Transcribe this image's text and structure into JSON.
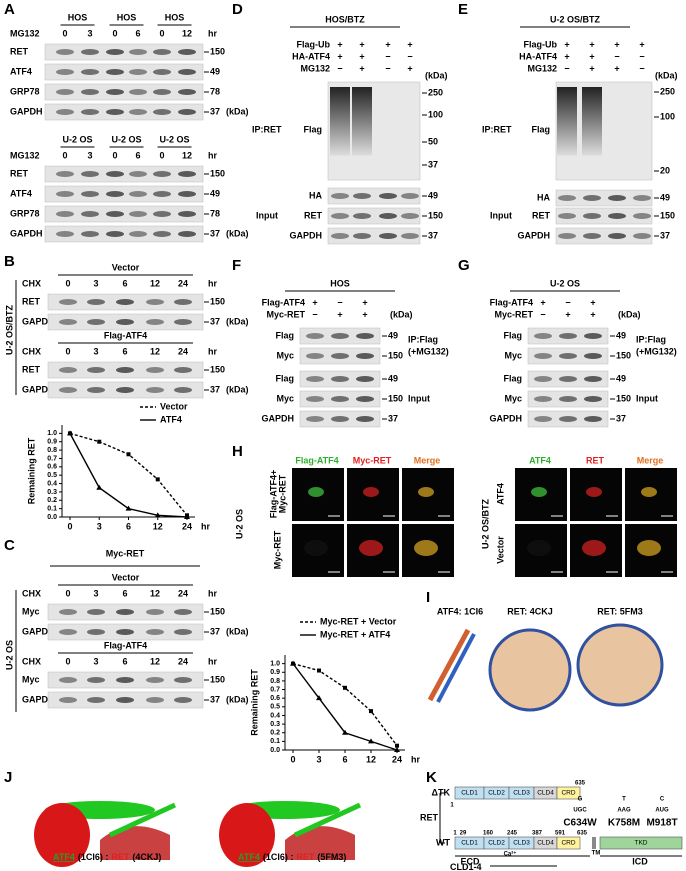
{
  "A": {
    "label": "A",
    "hos": {
      "cells": [
        "HOS",
        "HOS",
        "HOS"
      ],
      "treatment": "MG132",
      "times": [
        "0",
        "3",
        "0",
        "6",
        "0",
        "12"
      ],
      "unit": "hr",
      "rows": [
        "RET",
        "ATF4",
        "GRP78",
        "GAPDH"
      ],
      "markers": [
        "150",
        "49",
        "78",
        "37"
      ],
      "kda": "(kDa)"
    },
    "u2os": {
      "cells": [
        "U-2 OS",
        "U-2 OS",
        "U-2 OS"
      ],
      "treatment": "MG132",
      "times": [
        "0",
        "3",
        "0",
        "6",
        "0",
        "12"
      ],
      "unit": "hr",
      "rows": [
        "RET",
        "ATF4",
        "GRP78",
        "GAPDH"
      ],
      "markers": [
        "150",
        "49",
        "78",
        "37"
      ],
      "kda": "(kDa)"
    }
  },
  "B": {
    "label": "B",
    "side": "U-2 OS/BTZ",
    "blots": [
      {
        "title": "Vector",
        "treatment": "CHX",
        "times": [
          "0",
          "3",
          "6",
          "12",
          "24"
        ],
        "unit": "hr",
        "rows": [
          "RET",
          "GAPDH"
        ],
        "markers": [
          "150",
          "37"
        ],
        "kda": "(kDa)"
      },
      {
        "title": "Flag-ATF4",
        "treatment": "CHX",
        "times": [
          "0",
          "3",
          "6",
          "12",
          "24"
        ],
        "unit": "hr",
        "rows": [
          "RET",
          "GAPDH"
        ],
        "markers": [
          "150",
          "37"
        ],
        "kda": "(kDa)"
      }
    ],
    "chart": {
      "type": "line",
      "ylabel": "Remaining RET",
      "categories": [
        "0",
        "3",
        "6",
        "12",
        "24"
      ],
      "xunit": "hr",
      "ylim": [
        0,
        1.1
      ],
      "yticks": [
        {
          "value": 0,
          "label": "0.0"
        },
        0.1,
        0.2,
        0.3,
        0.4,
        0.5,
        0.6,
        0.7,
        0.8,
        0.9,
        {
          "value": 1,
          "label": "1.0"
        }
      ],
      "series": [
        {
          "name": "Vector",
          "color": "#000000",
          "dash": true,
          "values": [
            1.0,
            0.9,
            0.75,
            0.45,
            0.02
          ]
        },
        {
          "name": "ATF4",
          "color": "#000000",
          "dash": false,
          "values": [
            1.0,
            0.35,
            0.1,
            0.02,
            0.0
          ]
        }
      ]
    }
  },
  "C": {
    "label": "C",
    "side": "U-2 OS",
    "construct": "Myc-RET",
    "blots": [
      {
        "title": "Vector",
        "treatment": "CHX",
        "times": [
          "0",
          "3",
          "6",
          "12",
          "24"
        ],
        "unit": "hr",
        "rows": [
          "Myc",
          "GAPDH"
        ],
        "markers": [
          "150",
          "37"
        ],
        "kda": "(kDa)"
      },
      {
        "title": "Flag-ATF4",
        "treatment": "CHX",
        "times": [
          "0",
          "3",
          "6",
          "12",
          "24"
        ],
        "unit": "hr",
        "rows": [
          "Myc",
          "GAPDH"
        ],
        "markers": [
          "150",
          "37"
        ],
        "kda": "(kDa)"
      }
    ],
    "chart": {
      "type": "line",
      "ylabel": "Remaining RET",
      "categories": [
        "0",
        "3",
        "6",
        "12",
        "24"
      ],
      "xunit": "hr",
      "ylim": [
        0,
        1.1
      ],
      "yticks": [
        {
          "value": 0,
          "label": "0.0"
        },
        0.1,
        0.2,
        0.3,
        0.4,
        0.5,
        0.6,
        0.7,
        0.8,
        0.9,
        {
          "value": 1,
          "label": "1.0"
        }
      ],
      "series": [
        {
          "name": "Myc-RET + Vector",
          "color": "#000000",
          "dash": true,
          "values": [
            1.0,
            0.92,
            0.72,
            0.45,
            0.05
          ]
        },
        {
          "name": "Myc-RET + ATF4",
          "color": "#000000",
          "dash": false,
          "values": [
            1.0,
            0.6,
            0.2,
            0.1,
            0.0
          ]
        }
      ]
    }
  },
  "D": {
    "label": "D",
    "title": "HOS/BTZ",
    "conditions": [
      {
        "name": "Flag-Ub",
        "signs": [
          "+",
          "+",
          "+",
          "+"
        ]
      },
      {
        "name": "HA-ATF4",
        "signs": [
          "+",
          "+",
          "−",
          "−"
        ]
      },
      {
        "name": "MG132",
        "signs": [
          "−",
          "+",
          "−",
          "+"
        ]
      }
    ],
    "kda": "(kDa)",
    "groups": [
      {
        "name": [
          "IP:RET"
        ],
        "rows": [
          "Flag"
        ],
        "markers": [
          "250",
          "100",
          "50",
          "37"
        ]
      },
      {
        "name": [
          "Input"
        ],
        "rows": [
          "HA",
          "RET",
          "GAPDH"
        ],
        "markers": [
          "49",
          "150",
          "37"
        ]
      }
    ]
  },
  "E": {
    "label": "E",
    "title": "U-2 OS/BTZ",
    "conditions": [
      {
        "name": "Flag-Ub",
        "signs": [
          "+",
          "+",
          "+",
          "+"
        ]
      },
      {
        "name": "HA-ATF4",
        "signs": [
          "+",
          "+",
          "−",
          "−"
        ]
      },
      {
        "name": "MG132",
        "signs": [
          "−",
          "+",
          "+",
          "−"
        ]
      }
    ],
    "kda": "(kDa)",
    "groups": [
      {
        "name": [
          "IP:RET"
        ],
        "rows": [
          "Flag"
        ],
        "markers": [
          "250",
          "100",
          "20"
        ]
      },
      {
        "name": [
          "Input"
        ],
        "rows": [
          "HA",
          "RET",
          "GAPDH"
        ],
        "markers": [
          "49",
          "150",
          "37"
        ]
      }
    ]
  },
  "F": {
    "label": "F",
    "title": "HOS",
    "conditions": [
      {
        "name": "Flag-ATF4",
        "signs": [
          "+",
          "−",
          "+"
        ]
      },
      {
        "name": "Myc-RET",
        "signs": [
          "−",
          "+",
          "+"
        ]
      }
    ],
    "kda": "(kDa)",
    "groups": [
      {
        "name": [
          "IP:Flag",
          "(+MG132)"
        ],
        "rows": [
          "Flag",
          "Myc"
        ],
        "markers": [
          "49",
          "150"
        ]
      },
      {
        "name": [
          "Input"
        ],
        "rows": [
          "Flag",
          "Myc",
          "GAPDH"
        ],
        "markers": [
          "49",
          "150",
          "37"
        ]
      }
    ]
  },
  "G": {
    "label": "G",
    "title": "U-2 OS",
    "conditions": [
      {
        "name": "Flag-ATF4",
        "signs": [
          "+",
          "−",
          "+"
        ]
      },
      {
        "name": "Myc-RET",
        "signs": [
          "−",
          "+",
          "+"
        ]
      }
    ],
    "kda": "(kDa)",
    "groups": [
      {
        "name": [
          "IP:Flag",
          "(+MG132)"
        ],
        "rows": [
          "Flag",
          "Myc"
        ],
        "markers": [
          "49",
          "150"
        ]
      },
      {
        "name": [
          "Input"
        ],
        "rows": [
          "Flag",
          "Myc",
          "GAPDH"
        ],
        "markers": [
          "49",
          "150",
          "37"
        ]
      }
    ]
  },
  "H": {
    "label": "H",
    "left": {
      "cell": "U-2 OS",
      "columns": [
        "Flag-ATF4",
        "Myc-RET",
        "Merge"
      ],
      "rows": [
        [
          "Flag-ATF4+",
          "Myc-RET"
        ],
        [
          "Myc-RET"
        ]
      ]
    },
    "right": {
      "cell": "U-2 OS/BTZ",
      "columns": [
        "ATF4",
        "RET",
        "Merge"
      ],
      "rows": [
        [
          "ATF4"
        ],
        [
          "Vector"
        ]
      ]
    }
  },
  "I": {
    "label": "I",
    "structures": [
      "ATF4: 1CI6",
      "RET: 4CKJ",
      "RET: 5FM3"
    ]
  },
  "J": {
    "label": "J",
    "captions": [
      {
        "ligand": "ATF4",
        "pdb1": "(1CI6) :",
        "receptor": "RET",
        "pdb2": "(4CKJ)"
      },
      {
        "ligand": "ATF4",
        "pdb1": "(1CI6) :",
        "receptor": "RET",
        "pdb2": "(5FM3)"
      }
    ]
  },
  "K": {
    "label": "K",
    "protein": "RET",
    "dtk": {
      "name": "ΔTK",
      "start": "1",
      "end": "635",
      "domains": [
        "CLD1",
        "CLD2",
        "CLD3",
        "CLD4",
        "CRD"
      ]
    },
    "wt": {
      "name": "WT",
      "positions": [
        "1",
        "29",
        "160",
        "245",
        "387",
        "591",
        "635"
      ],
      "domains": [
        "CLD1",
        "CLD2",
        "CLD3",
        "CLD4",
        "CRD"
      ],
      "kinase": "TKD",
      "tm": "TM",
      "calcium": "Ca²⁺"
    },
    "mutations": [
      {
        "name": "C634W",
        "codon": "UGC",
        "change": "G"
      },
      {
        "name": "K758M",
        "codon": "AAG",
        "change": "T"
      },
      {
        "name": "M918T",
        "codon": "AUG",
        "change": "C"
      }
    ],
    "regions": [
      "ECD",
      "ICD",
      "CLD1-4"
    ]
  }
}
